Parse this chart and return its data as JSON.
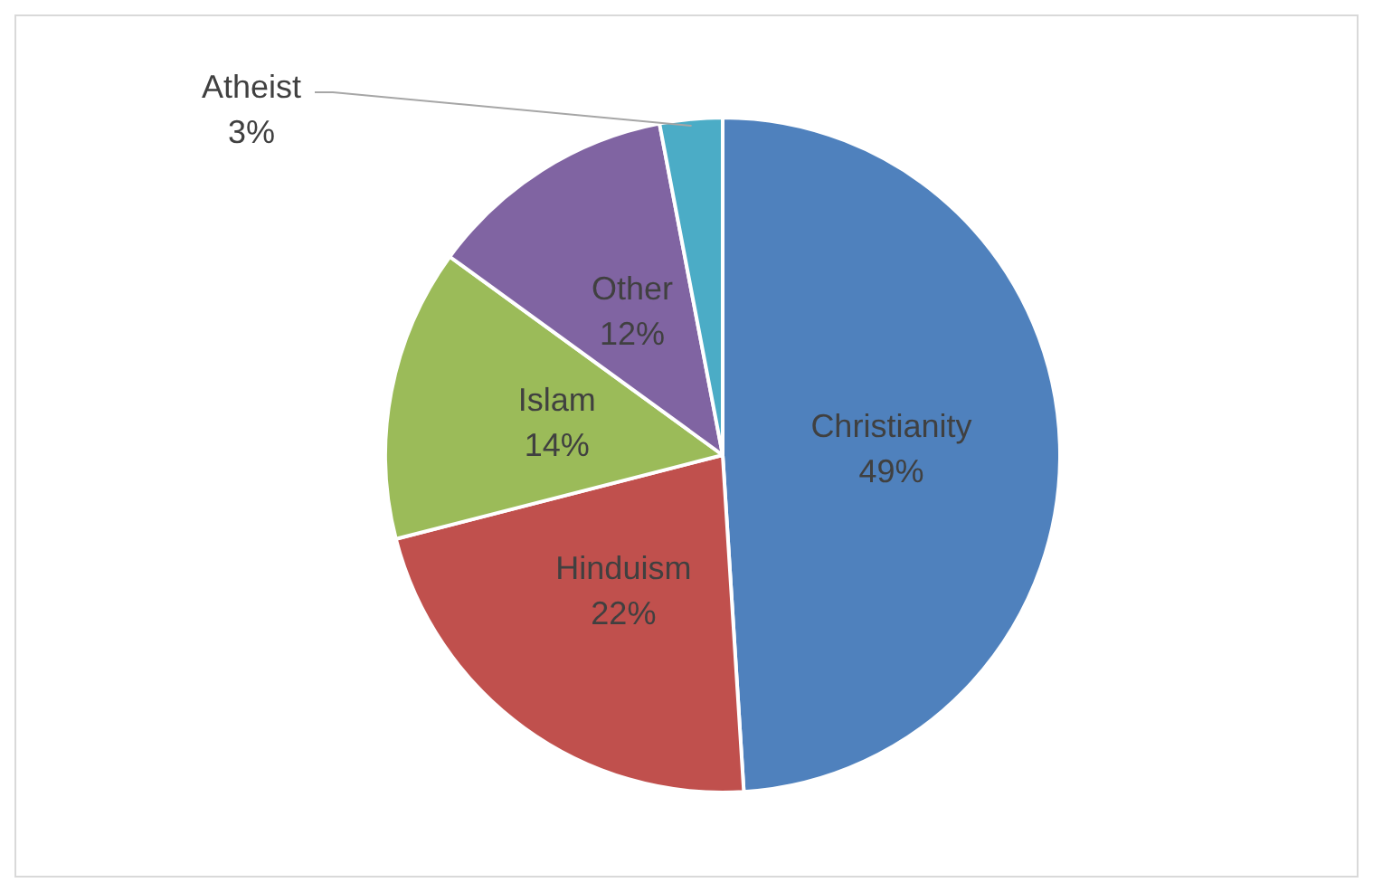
{
  "chart_data": {
    "type": "pie",
    "categories": [
      "Christianity",
      "Hinduism",
      "Islam",
      "Other",
      "Atheist"
    ],
    "values": [
      49,
      22,
      14,
      12,
      3
    ],
    "colors": [
      "#4f81bd",
      "#c0504d",
      "#9bbb59",
      "#8064a2",
      "#4bacc6"
    ],
    "value_labels": [
      "49%",
      "22%",
      "14%",
      "12%",
      "3%"
    ],
    "legend": false
  }
}
